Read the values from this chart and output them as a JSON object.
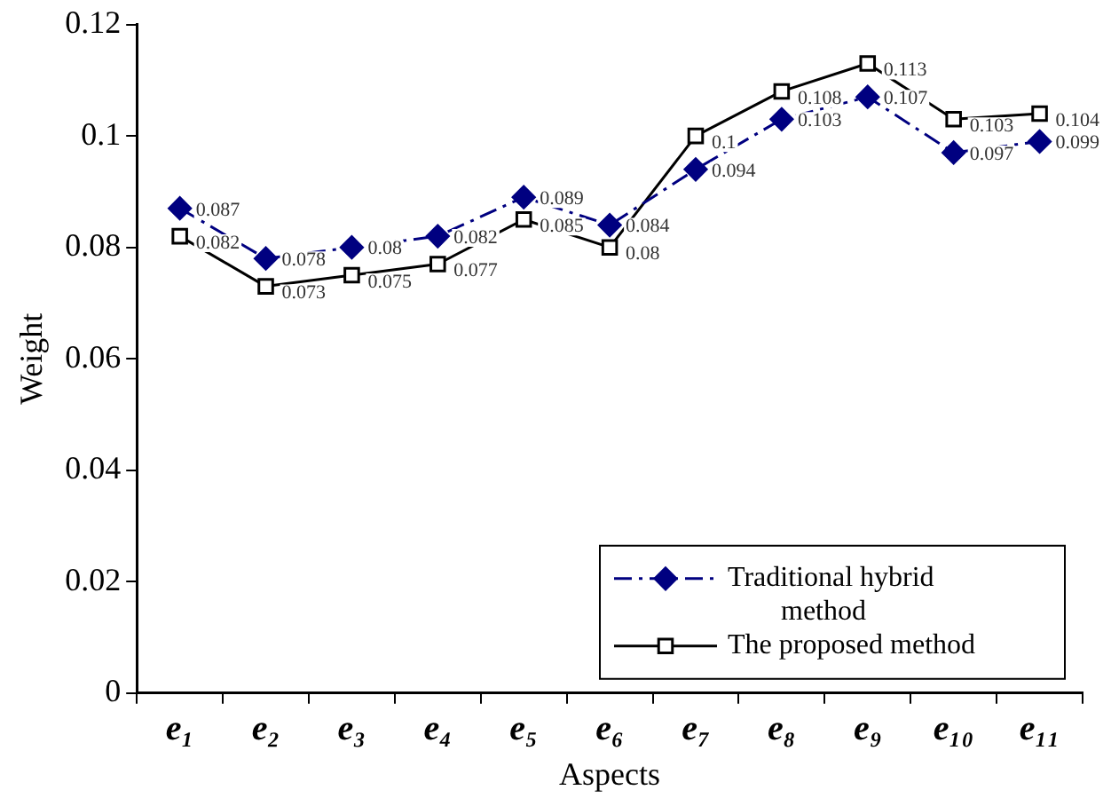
{
  "chart_data": {
    "type": "line",
    "xlabel": "Aspects",
    "ylabel": "Weight",
    "categories": [
      "e₁",
      "e₂",
      "e₃",
      "e₄",
      "e₅",
      "e₆",
      "e₇",
      "e₈",
      "e₉",
      "e₁₀",
      "e₁₁"
    ],
    "series": [
      {
        "name": "Traditional hybrid method",
        "color": "#000080",
        "marker": "diamond",
        "line_style": "dashed",
        "values": [
          0.087,
          0.078,
          0.08,
          0.082,
          0.089,
          0.084,
          0.094,
          0.103,
          0.107,
          0.097,
          0.099
        ]
      },
      {
        "name": "The proposed method",
        "color": "#000000",
        "marker": "square",
        "line_style": "solid",
        "values": [
          0.082,
          0.073,
          0.075,
          0.077,
          0.085,
          0.08,
          0.1,
          0.108,
          0.113,
          0.103,
          0.104
        ]
      }
    ],
    "ylim": [
      0,
      0.12
    ],
    "yticks": [
      0,
      0.02,
      0.04,
      0.06,
      0.08,
      0.1,
      0.12
    ],
    "grid": false,
    "legend": "bottom right",
    "data_labels": true
  }
}
